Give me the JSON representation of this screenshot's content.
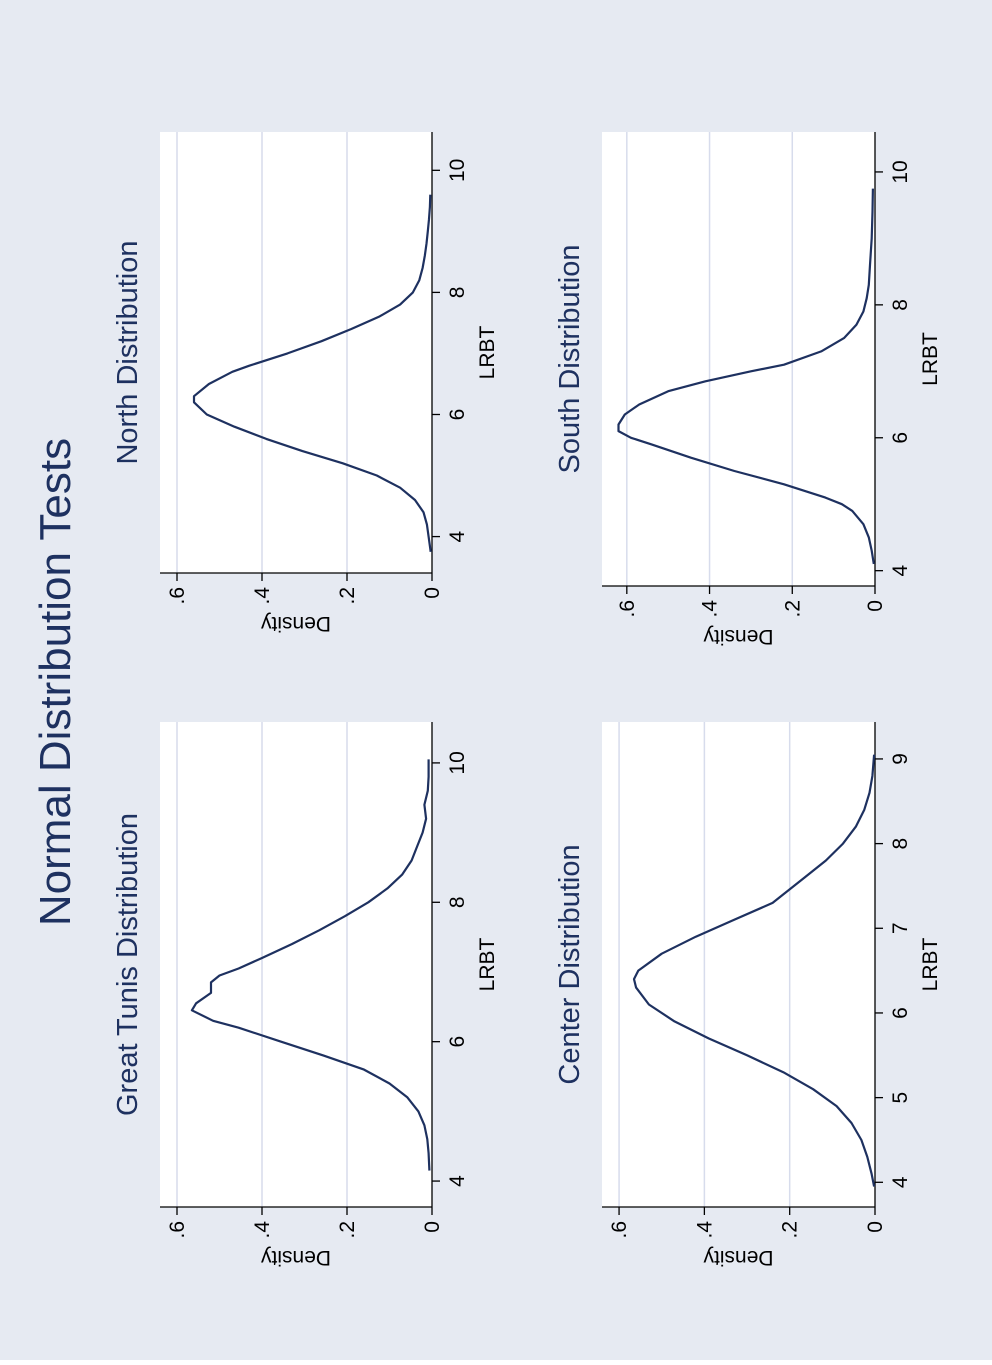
{
  "title": "Normal Distribution Tests",
  "colors": {
    "outer_bg": "#E6EAF2",
    "plot_bg": "#FFFFFF",
    "gridline": "#D7DCEC",
    "line": "#1E3160",
    "axis": "#000000",
    "title_text": "#1E3160"
  },
  "chart_data": [
    {
      "type": "line",
      "title": "Great Tunis Distribution",
      "xlabel": "LRBT",
      "ylabel": "Density",
      "xticks": [
        4,
        6,
        8,
        10
      ],
      "xtick_labels": [
        "4",
        "6",
        "8",
        "10"
      ],
      "yticks": [
        0,
        0.2,
        0.4,
        0.6
      ],
      "ytick_labels": [
        "0",
        ".2",
        ".4",
        ".6"
      ],
      "xlim": [
        3.8,
        10.3
      ],
      "ylim": [
        0,
        0.64
      ],
      "grid": true,
      "series": [
        {
          "x": [
            4.15,
            4.4,
            4.6,
            4.8,
            5.0,
            5.2,
            5.4,
            5.6,
            5.8,
            6.0,
            6.2,
            6.3,
            6.45,
            6.55,
            6.7,
            6.85,
            6.95,
            7.05,
            7.2,
            7.4,
            7.6,
            7.8,
            8.0,
            8.2,
            8.4,
            8.6,
            8.8,
            9.0,
            9.2,
            9.4,
            9.6,
            9.8,
            10.05
          ],
          "y": [
            0.006,
            0.008,
            0.011,
            0.018,
            0.032,
            0.058,
            0.1,
            0.16,
            0.255,
            0.355,
            0.455,
            0.515,
            0.565,
            0.555,
            0.52,
            0.52,
            0.5,
            0.455,
            0.4,
            0.33,
            0.265,
            0.205,
            0.15,
            0.105,
            0.07,
            0.048,
            0.035,
            0.022,
            0.014,
            0.018,
            0.01,
            0.008,
            0.008
          ]
        }
      ]
    },
    {
      "type": "line",
      "title": "North Distribution",
      "xlabel": "LRBT",
      "ylabel": "Density",
      "xticks": [
        4,
        6,
        8,
        10
      ],
      "xtick_labels": [
        "4",
        "6",
        "8",
        "10"
      ],
      "yticks": [
        0,
        0.2,
        0.4,
        0.6
      ],
      "ytick_labels": [
        "0",
        ".2",
        ".4",
        ".6"
      ],
      "xlim": [
        3.6,
        10.3
      ],
      "ylim": [
        0,
        0.64
      ],
      "grid": true,
      "series": [
        {
          "x": [
            3.75,
            4.0,
            4.2,
            4.4,
            4.6,
            4.8,
            5.0,
            5.2,
            5.4,
            5.6,
            5.8,
            6.0,
            6.2,
            6.3,
            6.5,
            6.7,
            6.8,
            7.0,
            7.2,
            7.4,
            7.6,
            7.8,
            8.0,
            8.2,
            8.4,
            8.6,
            8.8,
            9.0,
            9.2,
            9.4,
            9.6
          ],
          "y": [
            0.003,
            0.008,
            0.012,
            0.02,
            0.04,
            0.075,
            0.13,
            0.21,
            0.305,
            0.39,
            0.465,
            0.53,
            0.56,
            0.56,
            0.525,
            0.47,
            0.43,
            0.34,
            0.26,
            0.19,
            0.125,
            0.075,
            0.045,
            0.03,
            0.022,
            0.017,
            0.013,
            0.01,
            0.007,
            0.005,
            0.004
          ]
        }
      ]
    },
    {
      "type": "line",
      "title": "Center Distribution",
      "xlabel": "LRBT",
      "ylabel": "Density",
      "xticks": [
        4,
        5,
        6,
        7,
        8,
        9
      ],
      "xtick_labels": [
        "4",
        "5",
        "6",
        "7",
        "8",
        "9"
      ],
      "yticks": [
        0,
        0.2,
        0.4,
        0.6
      ],
      "ytick_labels": [
        "0",
        ".2",
        ".4",
        ".6"
      ],
      "xlim": [
        3.85,
        9.2
      ],
      "ylim": [
        0,
        0.64
      ],
      "grid": true,
      "series": [
        {
          "x": [
            3.95,
            4.1,
            4.3,
            4.5,
            4.7,
            4.9,
            5.1,
            5.3,
            5.5,
            5.7,
            5.9,
            6.1,
            6.3,
            6.4,
            6.5,
            6.7,
            6.9,
            7.1,
            7.3,
            7.4,
            7.6,
            7.8,
            8.0,
            8.2,
            8.4,
            8.6,
            8.8,
            9.05
          ],
          "y": [
            0.002,
            0.008,
            0.018,
            0.032,
            0.055,
            0.09,
            0.145,
            0.215,
            0.3,
            0.39,
            0.47,
            0.53,
            0.56,
            0.565,
            0.555,
            0.5,
            0.42,
            0.33,
            0.24,
            0.215,
            0.165,
            0.115,
            0.075,
            0.045,
            0.025,
            0.013,
            0.006,
            0.002
          ]
        }
      ]
    },
    {
      "type": "line",
      "title": "South Distribution",
      "xlabel": "LRBT",
      "ylabel": "Density",
      "xticks": [
        4,
        6,
        8,
        10
      ],
      "xtick_labels": [
        "4",
        "6",
        "8",
        "10"
      ],
      "yticks": [
        0,
        0.2,
        0.4,
        0.6
      ],
      "ytick_labels": [
        "0",
        ".2",
        ".4",
        ".6"
      ],
      "xlim": [
        3.95,
        10.3
      ],
      "ylim": [
        0,
        0.66
      ],
      "grid": true,
      "series": [
        {
          "x": [
            4.1,
            4.3,
            4.5,
            4.7,
            4.9,
            5.0,
            5.1,
            5.3,
            5.5,
            5.7,
            5.9,
            6.0,
            6.1,
            6.2,
            6.35,
            6.5,
            6.7,
            6.85,
            7.0,
            7.1,
            7.3,
            7.5,
            7.7,
            7.9,
            8.1,
            8.3,
            8.6,
            9.0,
            9.4,
            9.75
          ],
          "y": [
            0.003,
            0.008,
            0.015,
            0.028,
            0.055,
            0.08,
            0.12,
            0.22,
            0.34,
            0.445,
            0.54,
            0.59,
            0.62,
            0.62,
            0.605,
            0.57,
            0.5,
            0.41,
            0.3,
            0.22,
            0.13,
            0.075,
            0.045,
            0.028,
            0.02,
            0.015,
            0.012,
            0.008,
            0.006,
            0.005
          ]
        }
      ]
    }
  ]
}
